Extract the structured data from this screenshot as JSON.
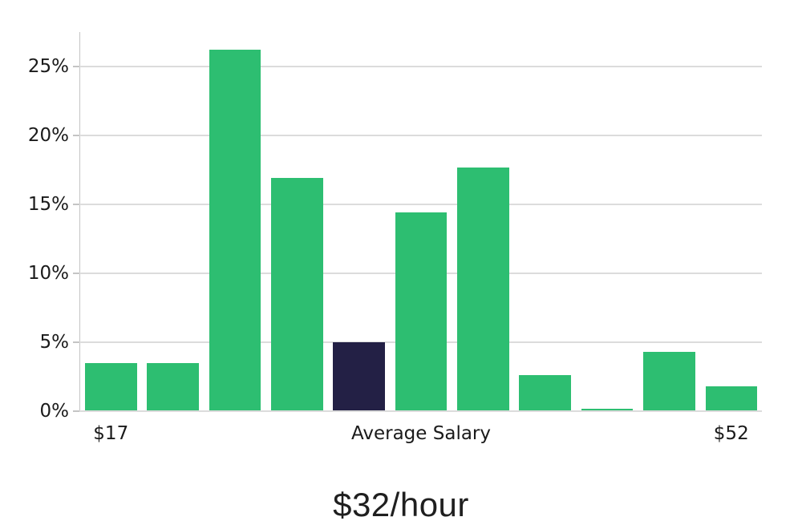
{
  "chart_data": {
    "type": "bar",
    "title": "$32/hour",
    "xlabel": "",
    "ylabel": "",
    "unit": "%",
    "n_bars": 11,
    "values": [
      3.5,
      3.5,
      26.2,
      16.9,
      5.0,
      14.4,
      17.7,
      2.6,
      0.15,
      4.3,
      1.8
    ],
    "highlight_index": 4,
    "y_ticks": [
      {
        "value": 0,
        "label": "0%"
      },
      {
        "value": 5,
        "label": "5%"
      },
      {
        "value": 10,
        "label": "10%"
      },
      {
        "value": 15,
        "label": "15%"
      },
      {
        "value": 20,
        "label": "20%"
      },
      {
        "value": 25,
        "label": "25%"
      }
    ],
    "x_ticks": [
      {
        "bar_index": 0,
        "label": "$17"
      },
      {
        "bar_index": 5,
        "label": "Average Salary"
      },
      {
        "bar_index": 10,
        "label": "$52"
      }
    ],
    "ylim": [
      0,
      27.5
    ],
    "grid": true,
    "legend": false,
    "colors": {
      "bar": "#2dbe71",
      "highlight": "#232045",
      "gridline": "#dcdcdc",
      "axis": "#c4c4c4",
      "tick_text": "#1a1a1a",
      "title_text": "#1f1f1f",
      "background": "#ffffff"
    }
  }
}
